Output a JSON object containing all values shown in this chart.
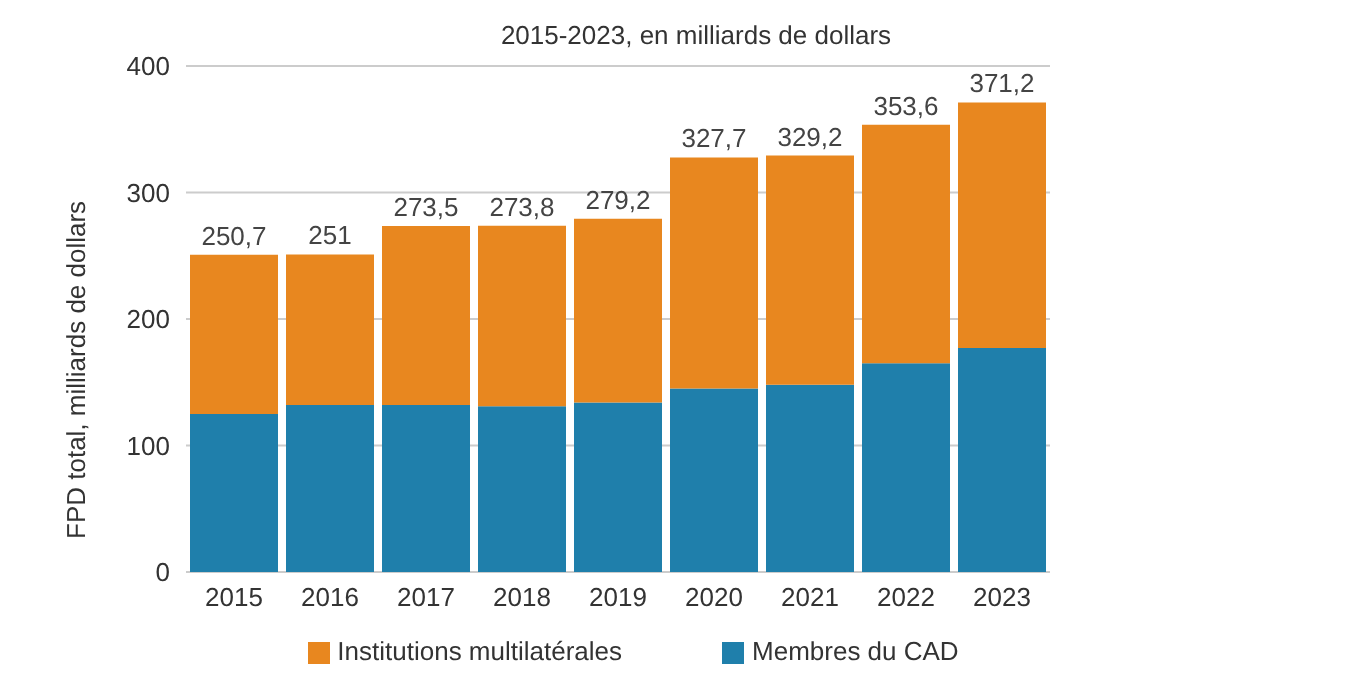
{
  "chart_data": {
    "type": "bar",
    "title": "2015-2023, en milliards de dollars",
    "ylabel": "FPD total, milliards de dollars",
    "categories": [
      "2015",
      "2016",
      "2017",
      "2018",
      "2019",
      "2020",
      "2021",
      "2022",
      "2023"
    ],
    "stacked": true,
    "series": [
      {
        "name": "Membres du CAD",
        "color": "#1f7fab",
        "values": [
          125,
          132,
          132,
          131,
          134,
          145,
          148,
          165,
          177
        ]
      },
      {
        "name": "Institutions multilatérales",
        "color": "#e8871f",
        "values": [
          125.7,
          119,
          141.5,
          142.8,
          145.2,
          182.7,
          181.2,
          188.6,
          194.2
        ]
      }
    ],
    "totals": [
      "250,7",
      "251",
      "273,5",
      "273,8",
      "279,2",
      "327,7",
      "329,2",
      "353,6",
      "371,2"
    ],
    "ylim": [
      0,
      400
    ],
    "yticks": [
      0,
      100,
      200,
      300,
      400
    ],
    "grid": "y",
    "legend": "bottom"
  }
}
